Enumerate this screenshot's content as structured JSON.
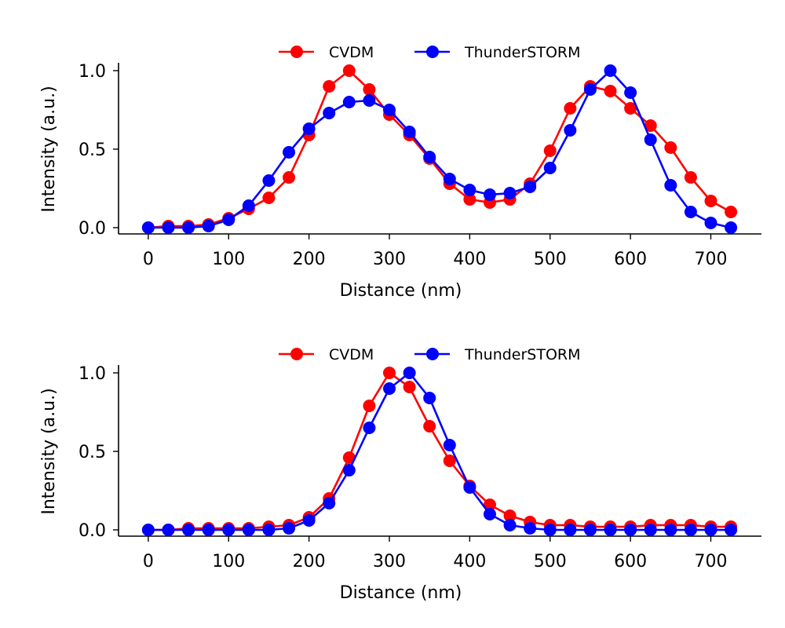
{
  "chart_data": [
    {
      "type": "line",
      "xlabel": "Distance (nm)",
      "ylabel": "Intensity (a.u.)",
      "xlim": [
        -37,
        763
      ],
      "ylim": [
        -0.04,
        1.05
      ],
      "xticks": [
        0,
        100,
        200,
        300,
        400,
        500,
        600,
        700
      ],
      "xtick_labels": [
        "0",
        "100",
        "200",
        "300",
        "400",
        "500",
        "600",
        "700"
      ],
      "yticks": [
        0,
        0.5,
        1
      ],
      "ytick_labels": [
        "0.0",
        "0.5",
        "1.0"
      ],
      "grid": false,
      "legend": "top-center",
      "x": [
        0,
        25,
        50,
        75,
        100,
        125,
        150,
        175,
        200,
        225,
        250,
        275,
        300,
        325,
        350,
        375,
        400,
        425,
        450,
        475,
        500,
        525,
        550,
        575,
        600,
        625,
        650,
        675,
        700,
        725
      ],
      "series": [
        {
          "name": "CVDM",
          "color": "#ff0000",
          "values": [
            0.0,
            0.01,
            0.01,
            0.02,
            0.06,
            0.12,
            0.19,
            0.32,
            0.59,
            0.9,
            1.0,
            0.88,
            0.72,
            0.59,
            0.44,
            0.28,
            0.18,
            0.16,
            0.18,
            0.28,
            0.49,
            0.76,
            0.9,
            0.87,
            0.76,
            0.65,
            0.51,
            0.32,
            0.17,
            0.1
          ]
        },
        {
          "name": "ThunderSTORM",
          "color": "#0000ff",
          "values": [
            0.0,
            0.0,
            0.0,
            0.01,
            0.05,
            0.14,
            0.3,
            0.48,
            0.63,
            0.73,
            0.8,
            0.81,
            0.75,
            0.61,
            0.45,
            0.31,
            0.24,
            0.21,
            0.22,
            0.26,
            0.38,
            0.62,
            0.88,
            1.0,
            0.86,
            0.56,
            0.27,
            0.1,
            0.03,
            0.0
          ]
        }
      ]
    },
    {
      "type": "line",
      "xlabel": "Distance (nm)",
      "ylabel": "Intensity (a.u.)",
      "xlim": [
        -37,
        763
      ],
      "ylim": [
        -0.04,
        1.05
      ],
      "xticks": [
        0,
        100,
        200,
        300,
        400,
        500,
        600,
        700
      ],
      "xtick_labels": [
        "0",
        "100",
        "200",
        "300",
        "400",
        "500",
        "600",
        "700"
      ],
      "yticks": [
        0,
        0.5,
        1
      ],
      "ytick_labels": [
        "0.0",
        "0.5",
        "1.0"
      ],
      "grid": false,
      "legend": "top-center",
      "x": [
        0,
        25,
        50,
        75,
        100,
        125,
        150,
        175,
        200,
        225,
        250,
        275,
        300,
        325,
        350,
        375,
        400,
        425,
        450,
        475,
        500,
        525,
        550,
        575,
        600,
        625,
        650,
        675,
        700,
        725
      ],
      "series": [
        {
          "name": "CVDM",
          "color": "#ff0000",
          "values": [
            0.0,
            0.0,
            0.01,
            0.01,
            0.01,
            0.01,
            0.02,
            0.03,
            0.08,
            0.2,
            0.46,
            0.79,
            1.0,
            0.91,
            0.66,
            0.44,
            0.28,
            0.16,
            0.09,
            0.05,
            0.03,
            0.03,
            0.02,
            0.02,
            0.02,
            0.03,
            0.03,
            0.03,
            0.02,
            0.02
          ]
        },
        {
          "name": "ThunderSTORM",
          "color": "#0000ff",
          "values": [
            0.0,
            0.0,
            0.0,
            0.0,
            0.0,
            0.0,
            0.0,
            0.01,
            0.06,
            0.17,
            0.38,
            0.65,
            0.9,
            1.0,
            0.84,
            0.54,
            0.27,
            0.1,
            0.03,
            0.01,
            0.0,
            0.0,
            0.0,
            0.0,
            0.0,
            0.0,
            0.0,
            0.0,
            0.0,
            0.0
          ]
        }
      ]
    }
  ]
}
